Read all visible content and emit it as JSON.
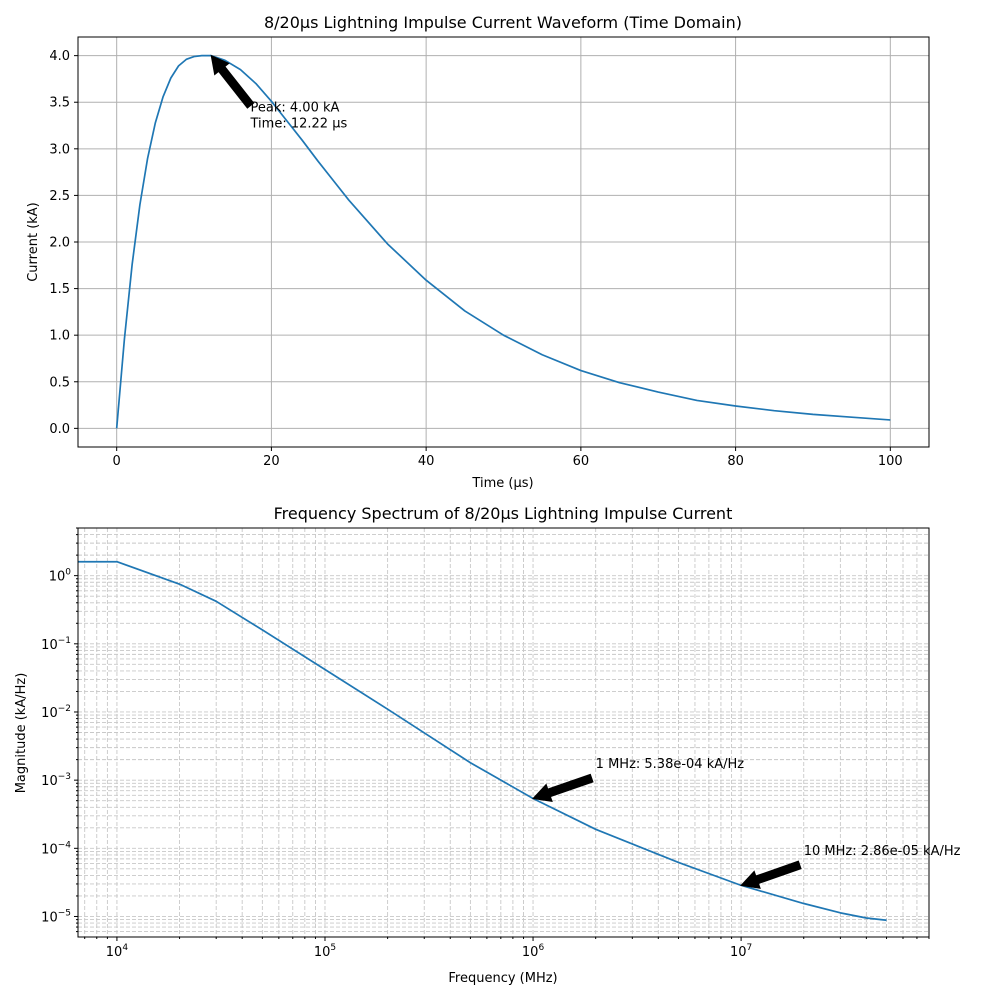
{
  "chart_data": [
    {
      "type": "line",
      "title": "8/20µs Lightning Impulse Current Waveform (Time Domain)",
      "xlabel": "Time (µs)",
      "ylabel": "Current (kA)",
      "xlim": [
        -5,
        105
      ],
      "ylim": [
        -0.2,
        4.2
      ],
      "xticks": [
        0,
        20,
        40,
        60,
        80,
        100
      ],
      "xtick_labels": [
        "0",
        "20",
        "40",
        "60",
        "80",
        "100"
      ],
      "yticks": [
        0,
        0.5,
        1.0,
        1.5,
        2.0,
        2.5,
        3.0,
        3.5,
        4.0
      ],
      "ytick_labels": [
        "0.0",
        "0.5",
        "1.0",
        "1.5",
        "2.0",
        "2.5",
        "3.0",
        "3.5",
        "4.0"
      ],
      "grid": true,
      "color": "#1f77b4",
      "series": [
        {
          "x": [
            0,
            1,
            2,
            3,
            4,
            5,
            6,
            7,
            8,
            9,
            10,
            11,
            12.22,
            14,
            16,
            18,
            20,
            22,
            24,
            26,
            28,
            30,
            35,
            40,
            45,
            50,
            55,
            60,
            65,
            70,
            75,
            80,
            85,
            90,
            95,
            100
          ],
          "y": [
            0,
            0.96,
            1.76,
            2.4,
            2.9,
            3.28,
            3.56,
            3.76,
            3.89,
            3.96,
            3.99,
            4.0,
            4.0,
            3.95,
            3.85,
            3.7,
            3.51,
            3.3,
            3.09,
            2.87,
            2.66,
            2.45,
            1.98,
            1.59,
            1.26,
            1.0,
            0.79,
            0.62,
            0.49,
            0.39,
            0.3,
            0.24,
            0.19,
            0.15,
            0.12,
            0.09
          ]
        }
      ],
      "annotations": [
        {
          "lines": [
            "Peak: 4.00 kA",
            "Time: 12.22 µs"
          ],
          "xy": [
            12.22,
            4.0
          ],
          "xytext": [
            17.3,
            3.4
          ]
        }
      ]
    },
    {
      "type": "line",
      "title": "Frequency Spectrum of 8/20µs Lightning Impulse Current",
      "xlabel": "Frequency (MHz)",
      "ylabel": "Magnitude (kA/Hz)",
      "xscale": "log",
      "yscale": "log",
      "xlim": [
        6500,
        80000000
      ],
      "ylim": [
        5e-06,
        5.0
      ],
      "xticks": [
        10000,
        100000,
        1000000,
        10000000
      ],
      "xtick_labels": [
        {
          "base": "10",
          "exp": "4"
        },
        {
          "base": "10",
          "exp": "5"
        },
        {
          "base": "10",
          "exp": "6"
        },
        {
          "base": "10",
          "exp": "7"
        }
      ],
      "yticks": [
        1e-05,
        0.0001,
        0.001,
        0.01,
        0.1,
        1
      ],
      "ytick_labels": [
        {
          "base": "10",
          "exp": "−5"
        },
        {
          "base": "10",
          "exp": "−4"
        },
        {
          "base": "10",
          "exp": "−3"
        },
        {
          "base": "10",
          "exp": "−2"
        },
        {
          "base": "10",
          "exp": "−1"
        },
        {
          "base": "10",
          "exp": "0"
        }
      ],
      "grid": true,
      "color": "#1f77b4",
      "series": [
        {
          "x": [
            6500,
            10000,
            20000,
            30000,
            50000,
            100000,
            200000,
            500000,
            1000000,
            2000000,
            5000000,
            10000000,
            20000000,
            30000000,
            40000000,
            50000000
          ],
          "y": [
            1.6,
            1.6,
            0.75,
            0.42,
            0.16,
            0.042,
            0.011,
            0.0018,
            0.000538,
            0.00019,
            6.2e-05,
            2.86e-05,
            1.55e-05,
            1.13e-05,
            9.5e-06,
            8.8e-06
          ]
        }
      ],
      "annotations": [
        {
          "lines": [
            "1 MHz: 5.38e-04 kA/Hz"
          ],
          "xy": [
            1000000,
            0.000538
          ],
          "xytext": [
            2000000,
            0.0015
          ]
        },
        {
          "lines": [
            "10 MHz: 2.86e-05 kA/Hz"
          ],
          "xy": [
            10000000,
            2.86e-05
          ],
          "xytext": [
            20000000,
            8e-05
          ]
        }
      ]
    }
  ]
}
